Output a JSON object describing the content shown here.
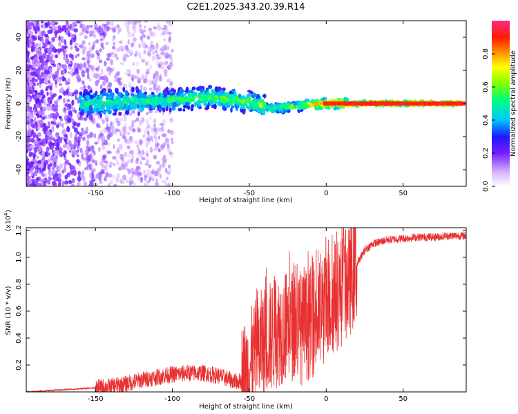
{
  "title": "C2E1.2025.343.20.39.R14",
  "chart_data": [
    {
      "type": "heatmap",
      "title": "C2E1.2025.343.20.39.R14",
      "xlabel": "Height of straight line (km)",
      "ylabel": "Frequency (Hz)",
      "xlim": [
        -195,
        91
      ],
      "ylim": [
        -50,
        50
      ],
      "xticks": [
        -150,
        -100,
        -50,
        0,
        50
      ],
      "yticks": [
        -40,
        -20,
        0,
        20,
        40
      ],
      "colorbar": {
        "label": "Normalized spectral amplitude",
        "range": [
          0.0,
          1.0
        ],
        "ticks": [
          "0.0",
          "0.2",
          "0.4",
          "0.6",
          "0.8"
        ],
        "tick_values": [
          0.0,
          0.2,
          0.4,
          0.6,
          0.8
        ]
      },
      "ridge": [
        {
          "x": -155,
          "freq": 0,
          "amp": 0.35
        },
        {
          "x": -130,
          "freq": 1,
          "amp": 0.38
        },
        {
          "x": -100,
          "freq": 2,
          "amp": 0.42
        },
        {
          "x": -75,
          "freq": 4,
          "amp": 0.45
        },
        {
          "x": -50,
          "freq": 1,
          "amp": 0.48
        },
        {
          "x": -35,
          "freq": -3,
          "amp": 0.55
        },
        {
          "x": -15,
          "freq": -1,
          "amp": 0.6
        },
        {
          "x": 0,
          "freq": 0,
          "amp": 0.88
        },
        {
          "x": 20,
          "freq": 0,
          "amp": 0.92
        },
        {
          "x": 50,
          "freq": 0,
          "amp": 0.95
        },
        {
          "x": 88,
          "freq": 0,
          "amp": 0.95
        }
      ]
    },
    {
      "type": "line",
      "xlabel": "Height of straight line (km)",
      "ylabel": "SNR (10 * v/v)",
      "yscale_note": "(x10^4)",
      "xlim": [
        -195,
        91
      ],
      "ylim": [
        0,
        1.22
      ],
      "xticks": [
        -150,
        -100,
        -50,
        0,
        50
      ],
      "yticks": [
        0.2,
        0.4,
        0.6,
        0.8,
        1.0,
        1.2
      ],
      "ytick_labels": [
        "0.2",
        "0.4",
        "0.6",
        "0.8",
        "1.0",
        "1.2"
      ],
      "color": "#e83030",
      "series": [
        {
          "name": "SNR",
          "x": [
            -195,
            -180,
            -165,
            -150,
            -140,
            -130,
            -120,
            -110,
            -100,
            -90,
            -80,
            -70,
            -60,
            -55,
            -50,
            -45,
            -40,
            -35,
            -30,
            -25,
            -20,
            -15,
            -10,
            -5,
            0,
            5,
            10,
            15,
            20,
            25,
            30,
            40,
            50,
            60,
            70,
            80,
            91
          ],
          "y": [
            0.0,
            0.01,
            0.02,
            0.03,
            0.04,
            0.06,
            0.09,
            0.11,
            0.13,
            0.14,
            0.14,
            0.12,
            0.08,
            0.08,
            0.18,
            0.3,
            0.38,
            0.42,
            0.46,
            0.5,
            0.5,
            0.46,
            0.52,
            0.55,
            0.62,
            0.7,
            0.75,
            0.82,
            0.95,
            1.05,
            1.1,
            1.13,
            1.14,
            1.15,
            1.15,
            1.16,
            1.16
          ]
        }
      ]
    }
  ]
}
